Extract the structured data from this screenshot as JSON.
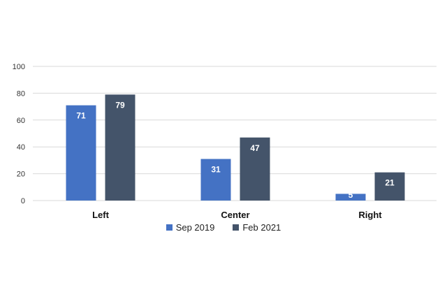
{
  "chart_data": {
    "type": "bar",
    "categories": [
      "Left",
      "Center",
      "Right"
    ],
    "series": [
      {
        "name": "Sep 2019",
        "values": [
          71,
          31,
          5
        ],
        "color": "#4472C4"
      },
      {
        "name": "Feb 2021",
        "values": [
          79,
          47,
          21
        ],
        "color": "#44546A"
      }
    ],
    "yticks": [
      "0",
      "20",
      "40",
      "60",
      "80",
      "100"
    ],
    "ylim": [
      0,
      100
    ],
    "grid": true,
    "legend_position": "bottom",
    "data_label_color": "#FFFFFF",
    "grid_color": "#D9D9D9",
    "title": "",
    "xlabel": "",
    "ylabel": ""
  }
}
